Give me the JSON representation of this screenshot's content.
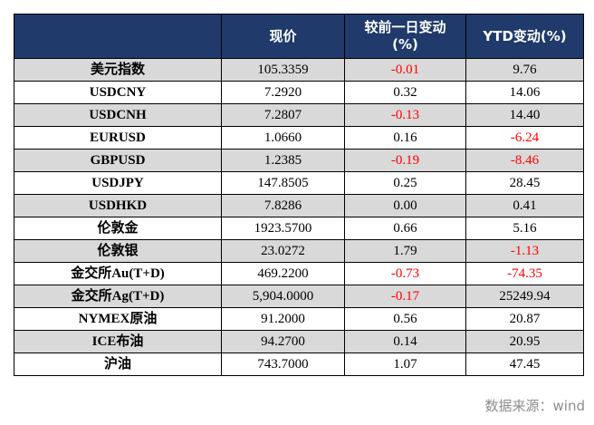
{
  "header": {
    "name": "",
    "price": "现价",
    "day_change_line1": "较前一日变动",
    "day_change_line2": "(%)",
    "ytd_change": "YTD变动(%)"
  },
  "rows": [
    {
      "name": "美元指数",
      "price": "105.3359",
      "day_change": "-0.01",
      "ytd_change": "9.76"
    },
    {
      "name": "USDCNY",
      "price": "7.2920",
      "day_change": "0.32",
      "ytd_change": "14.06"
    },
    {
      "name": "USDCNH",
      "price": "7.2807",
      "day_change": "-0.13",
      "ytd_change": "14.40"
    },
    {
      "name": "EURUSD",
      "price": "1.0660",
      "day_change": "0.16",
      "ytd_change": "-6.24"
    },
    {
      "name": "GBPUSD",
      "price": "1.2385",
      "day_change": "-0.19",
      "ytd_change": "-8.46"
    },
    {
      "name": "USDJPY",
      "price": "147.8505",
      "day_change": "0.25",
      "ytd_change": "28.45"
    },
    {
      "name": "USDHKD",
      "price": "7.8286",
      "day_change": "0.00",
      "ytd_change": "0.41"
    },
    {
      "name": "伦敦金",
      "price": "1923.5700",
      "day_change": "0.66",
      "ytd_change": "5.16"
    },
    {
      "name": "伦敦银",
      "price": "23.0272",
      "day_change": "1.79",
      "ytd_change": "-1.13"
    },
    {
      "name": "金交所Au(T+D)",
      "price": "469.2200",
      "day_change": "-0.73",
      "ytd_change": "-74.35"
    },
    {
      "name": "金交所Ag(T+D)",
      "price": "5,904.0000",
      "day_change": "-0.17",
      "ytd_change": "25249.94"
    },
    {
      "name": "NYMEX原油",
      "price": "91.2000",
      "day_change": "0.56",
      "ytd_change": "20.87"
    },
    {
      "name": "ICE布油",
      "price": "94.2700",
      "day_change": "0.14",
      "ytd_change": "20.95"
    },
    {
      "name": "沪油",
      "price": "743.7000",
      "day_change": "1.07",
      "ytd_change": "47.45"
    }
  ],
  "source": "数据来源：wind",
  "colors": {
    "header_bg": "#1f3a6b",
    "header_text": "#ffffff",
    "alt_row_bg": "#d9d9d9",
    "negative": "#ff0000",
    "source_text": "#8c8c8c"
  }
}
